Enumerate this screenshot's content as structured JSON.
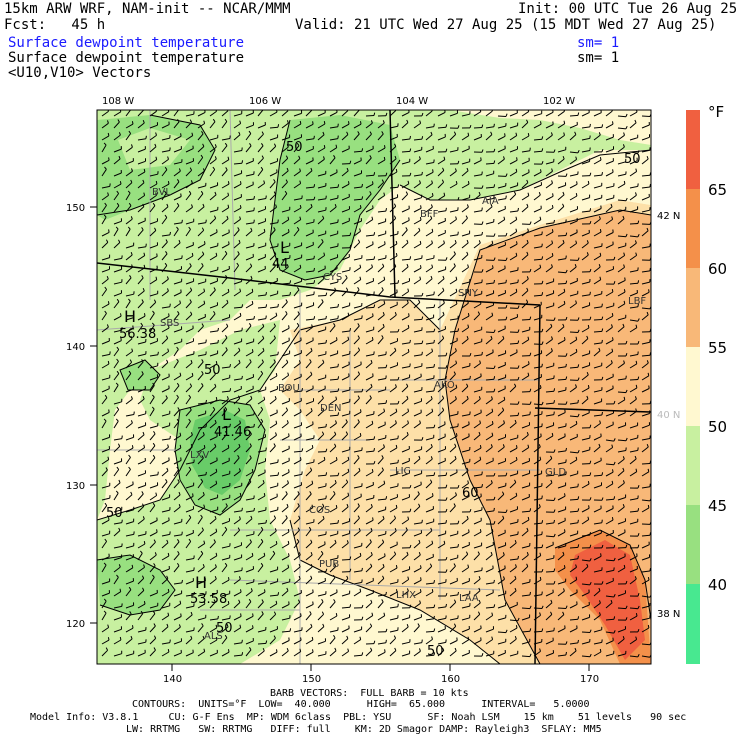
{
  "header": {
    "model": "15km ARW WRF, NAM-init -- NCAR/MMM",
    "init": "Init: 00 UTC Tue 26 Aug 25",
    "fcst": "Fcst:   45 h",
    "valid": "Valid: 21 UTC Wed 27 Aug 25 (15 MDT Wed 27 Aug 25)",
    "field1": "Surface dewpoint temperature",
    "sm1": "sm= 1",
    "field2": "Surface dewpoint temperature",
    "sm2": "sm= 1",
    "field3": "<U10,V10> Vectors"
  },
  "top_lon_labels": [
    "108 W",
    "106 W",
    "104 W",
    "102 W"
  ],
  "right_lat_labels": [
    "42 N",
    "40 N",
    "38 N"
  ],
  "left_y_ticks": [
    "150",
    "140",
    "130",
    "120"
  ],
  "bottom_x_ticks": [
    "140",
    "150",
    "160",
    "170"
  ],
  "colorbar": {
    "unit": "°F",
    "labels": [
      "65",
      "60",
      "55",
      "50",
      "45",
      "40"
    ],
    "colors": [
      "#f06040",
      "#f4904a",
      "#f8b878",
      "#fde0a8",
      "#fff8d0",
      "#c8f0a0",
      "#98e080",
      "#68cc68",
      "#48e890"
    ]
  },
  "cities": [
    "BFF",
    "AIA",
    "SNY",
    "LBF",
    "CYS",
    "BOU",
    "DEN",
    "AKO",
    "LIC",
    "GLD",
    "COS",
    "PUB",
    "LHX",
    "LAA",
    "ALS",
    "SBS",
    "BVL",
    "LXV"
  ],
  "contour_labels": [
    "50",
    "50",
    "44",
    "50",
    "41.46",
    "50",
    "60",
    "50",
    "50",
    "50"
  ],
  "highs": [
    {
      "label": "H",
      "value": "56.38"
    },
    {
      "label": "H",
      "value": "53.58"
    }
  ],
  "lows": [
    {
      "label": "L",
      "value": ""
    }
  ],
  "footer": {
    "line1": "BARB VECTORS:  FULL BARB = 10 kts",
    "line2": "CONTOURS:  UNITS=°F  LOW=  40.000      HIGH=  65.000      INTERVAL=   5.0000",
    "line3": "Model Info: V3.8.1     CU: G-F Ens  MP: WDM 6class  PBL: YSU      SF: Noah LSM    15 km    51 levels   90 sec",
    "line4": "LW: RRTMG   SW: RRTMG   DIFF: full    KM: 2D Smagor DAMP: Rayleigh3  SFLAY: MM5"
  }
}
